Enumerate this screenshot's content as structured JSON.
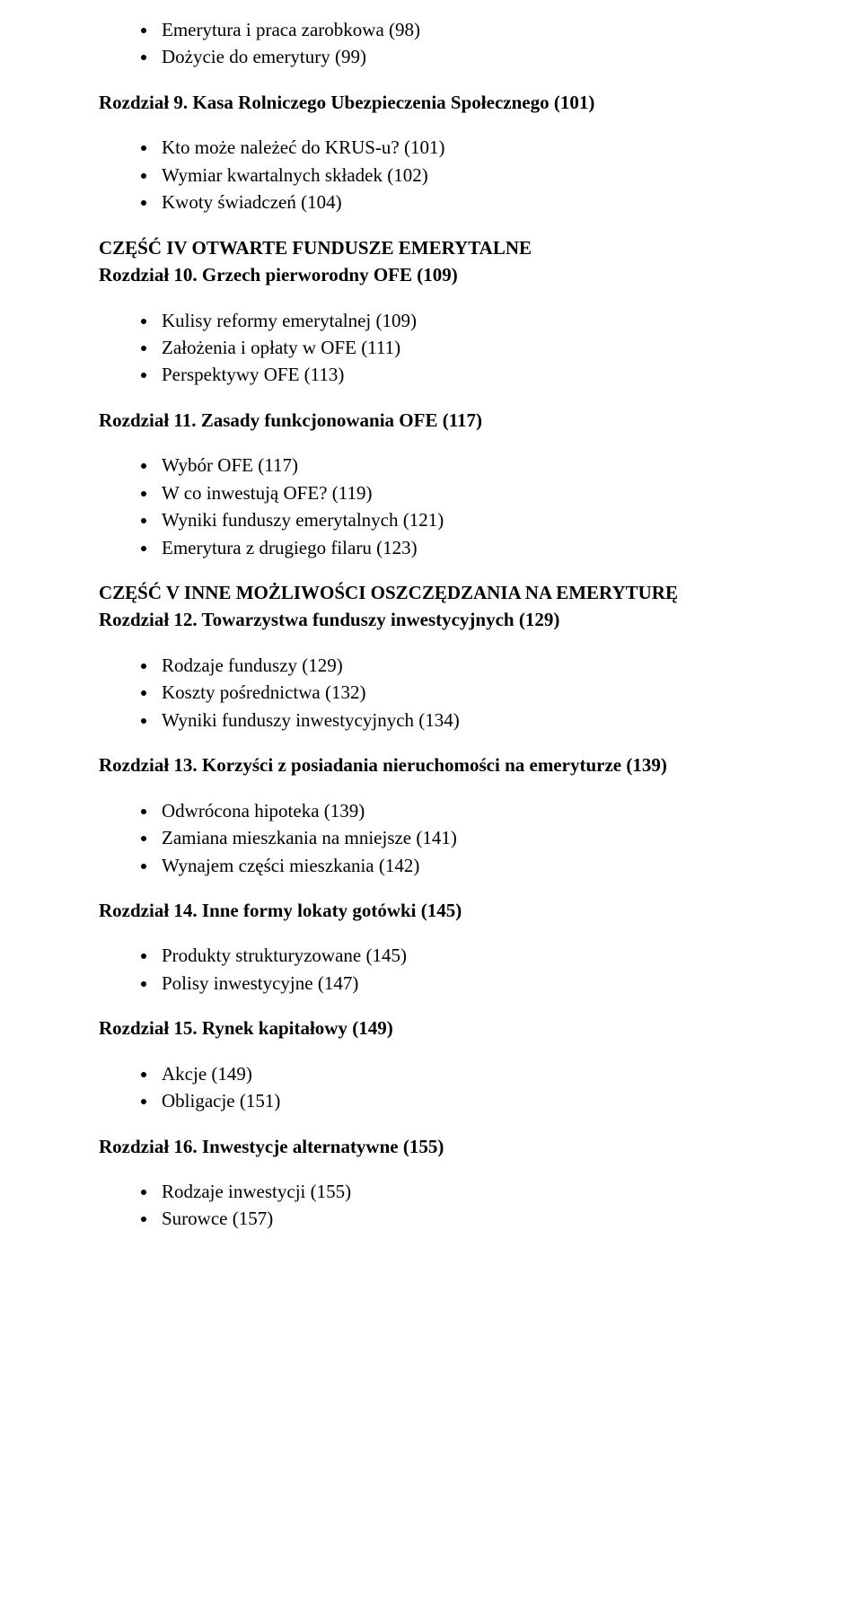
{
  "section1": {
    "items": [
      "Emerytura i praca zarobkowa (98)",
      "Dożycie do emerytury (99)"
    ]
  },
  "chapter9": {
    "title": "Rozdział 9. Kasa Rolniczego Ubezpieczenia Społecznego (101)",
    "items": [
      "Kto może należeć do KRUS-u? (101)",
      "Wymiar kwartalnych składek (102)",
      "Kwoty świadczeń (104)"
    ]
  },
  "part4": {
    "title": "CZĘŚĆ IV OTWARTE FUNDUSZE EMERYTALNE"
  },
  "chapter10": {
    "title": "Rozdział 10. Grzech pierworodny OFE (109)",
    "items": [
      "Kulisy reformy emerytalnej (109)",
      "Założenia i opłaty w OFE (111)",
      "Perspektywy OFE (113)"
    ]
  },
  "chapter11": {
    "title": "Rozdział 11. Zasady funkcjonowania OFE (117)",
    "items": [
      "Wybór OFE (117)",
      "W co inwestują OFE? (119)",
      "Wyniki funduszy emerytalnych (121)",
      "Emerytura z drugiego filaru (123)"
    ]
  },
  "part5": {
    "title": "CZĘŚĆ V INNE MOŻLIWOŚCI OSZCZĘDZANIA NA EMERYTURĘ"
  },
  "chapter12": {
    "title": "Rozdział 12. Towarzystwa funduszy inwestycyjnych (129)",
    "items": [
      "Rodzaje funduszy (129)",
      "Koszty pośrednictwa (132)",
      "Wyniki funduszy inwestycyjnych (134)"
    ]
  },
  "chapter13": {
    "title": "Rozdział 13. Korzyści z posiadania nieruchomości na emeryturze (139)",
    "items": [
      "Odwrócona hipoteka (139)",
      "Zamiana mieszkania na mniejsze (141)",
      "Wynajem części mieszkania (142)"
    ]
  },
  "chapter14": {
    "title": "Rozdział 14. Inne formy lokaty gotówki (145)",
    "items": [
      "Produkty strukturyzowane (145)",
      "Polisy inwestycyjne (147)"
    ]
  },
  "chapter15": {
    "title": "Rozdział 15. Rynek kapitałowy (149)",
    "items": [
      "Akcje (149)",
      "Obligacje (151)"
    ]
  },
  "chapter16": {
    "title": "Rozdział 16. Inwestycje alternatywne (155)",
    "items": [
      "Rodzaje inwestycji (155)",
      "Surowce (157)"
    ]
  }
}
